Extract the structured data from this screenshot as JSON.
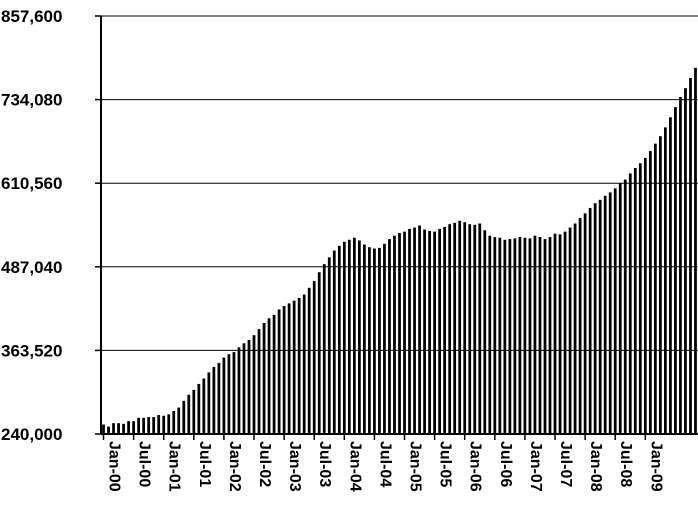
{
  "chart_data": {
    "type": "bar",
    "title": "",
    "xlabel": "",
    "ylabel": "",
    "ylim": [
      240000,
      857600
    ],
    "yticks": [
      240000,
      363520,
      487040,
      610560,
      734080,
      857600
    ],
    "ytick_labels": [
      "240,000",
      "363,520",
      "487,040",
      "610,560",
      "734,080",
      "857,600"
    ],
    "xtick_labels": [
      "Jan-00",
      "Jul-00",
      "Jan-01",
      "Jul-01",
      "Jan-02",
      "Jul-02",
      "Jan-03",
      "Jul-03",
      "Jan-04",
      "Jul-04",
      "Jan-05",
      "Jul-05",
      "Jan-06",
      "Jul-06",
      "Jan-07",
      "Jul-07",
      "Jan-08",
      "Jul-08",
      "Jan-09"
    ],
    "grid": "horizontal",
    "bar_color": "#000000",
    "start_month": "Jan-00",
    "values": [
      254000,
      251000,
      256000,
      256000,
      255000,
      259000,
      259000,
      264000,
      264000,
      265000,
      265000,
      268000,
      267000,
      269000,
      274000,
      279000,
      289000,
      298000,
      305000,
      314000,
      322000,
      331000,
      339000,
      345000,
      353000,
      358000,
      361000,
      368000,
      374000,
      379000,
      386000,
      395000,
      404000,
      411000,
      416000,
      424000,
      429000,
      433000,
      437000,
      441000,
      446000,
      456000,
      466000,
      479000,
      491000,
      501000,
      511000,
      518000,
      524000,
      527000,
      530000,
      526000,
      520000,
      516000,
      514000,
      515000,
      521000,
      528000,
      533000,
      537000,
      539000,
      543000,
      545000,
      548000,
      542000,
      540000,
      539000,
      543000,
      546000,
      550000,
      552000,
      555000,
      553000,
      550000,
      549000,
      551000,
      541000,
      533000,
      531000,
      530000,
      527000,
      528000,
      529000,
      531000,
      530000,
      529000,
      533000,
      531000,
      528000,
      531000,
      536000,
      535000,
      539000,
      545000,
      551000,
      559000,
      566000,
      574000,
      581000,
      586000,
      592000,
      597000,
      603000,
      610000,
      616000,
      625000,
      633000,
      640000,
      648000,
      658000,
      669000,
      680000,
      693000,
      708000,
      723000,
      738000,
      751000,
      766000,
      781000
    ]
  }
}
